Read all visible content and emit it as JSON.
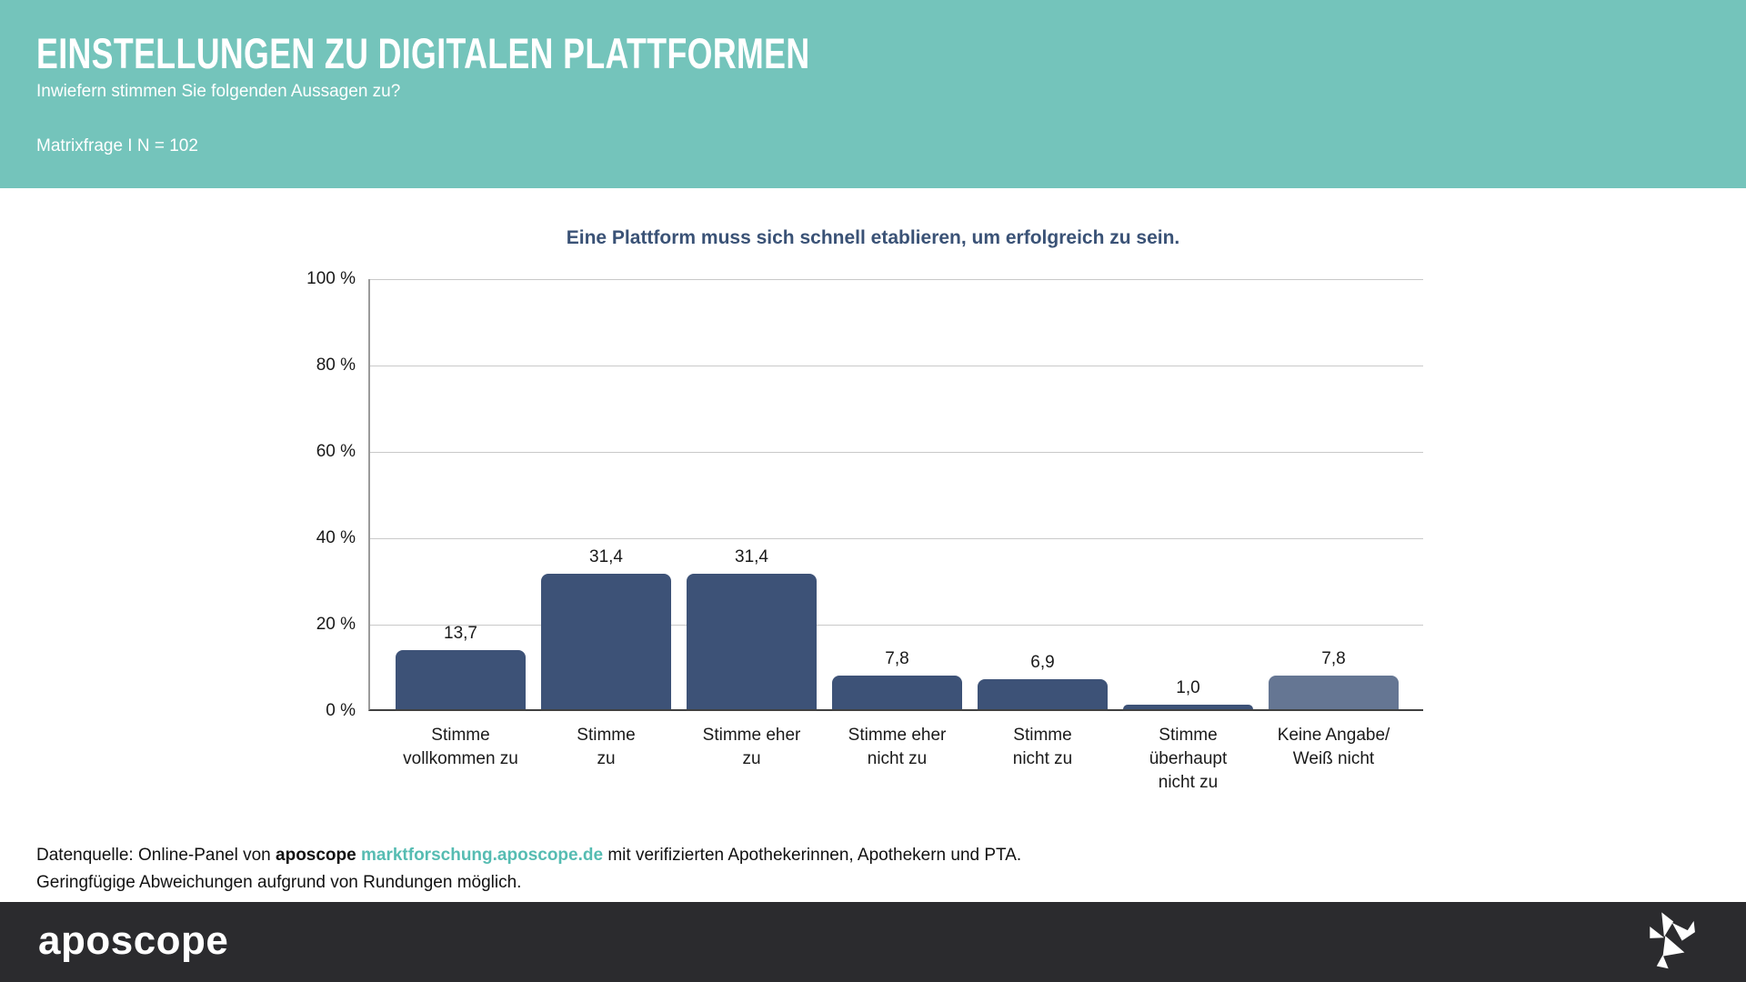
{
  "header": {
    "title": "EINSTELLUNGEN ZU DIGITALEN PLATTFORMEN",
    "subtitle": "Inwiefern stimmen Sie folgenden Aussagen zu?",
    "meta": "Matrixfrage I N = 102"
  },
  "chart_data": {
    "type": "bar",
    "title": "Eine Plattform muss sich schnell etablieren, um erfolgreich zu sein.",
    "categories": [
      "Stimme\nvollkommen zu",
      "Stimme\nzu",
      "Stimme eher\nzu",
      "Stimme eher\nnicht zu",
      "Stimme\nnicht zu",
      "Stimme\nüberhaupt\nnicht zu",
      "Keine Angabe/\nWeiß nicht"
    ],
    "values": [
      13.7,
      31.4,
      31.4,
      7.8,
      6.9,
      1.0,
      7.8
    ],
    "value_labels": [
      "13,7",
      "31,4",
      "31,4",
      "7,8",
      "6,9",
      "1,0",
      "7,8"
    ],
    "bar_colors": [
      "#3d5277",
      "#3d5277",
      "#3d5277",
      "#3d5277",
      "#3d5277",
      "#3d5277",
      "#657693"
    ],
    "xlabel": "",
    "ylabel": "",
    "y_ticks": [
      "100 %",
      "80 %",
      "60 %",
      "40 %",
      "20 %",
      "0 %"
    ],
    "ylim": [
      0,
      100
    ],
    "grid": true,
    "legend": "none"
  },
  "footnote": {
    "line1_prefix": "Datenquelle: Online-Panel von ",
    "line1_brand": "aposcope",
    "line1_link": "marktforschung.aposcope.de",
    "line1_suffix": " mit verifizierten Apothekerinnen, Apothekern und PTA.",
    "line2": "Geringfügige Abweichungen aufgrund von Rundungen möglich."
  },
  "footer": {
    "logo_text": "aposcope",
    "icon": "origami-bird-icon"
  },
  "colors": {
    "header_background": "#74c4bb",
    "header_text": "#ffffff",
    "chart_title": "#3a5276",
    "bar_primary": "#3d5277",
    "bar_no_answer": "#657693",
    "gridline": "#c9c9c9",
    "axis_line": "#9b9b9b",
    "baseline": "#404040",
    "link": "#56bcb2",
    "footer_background": "#2b2b2e"
  }
}
